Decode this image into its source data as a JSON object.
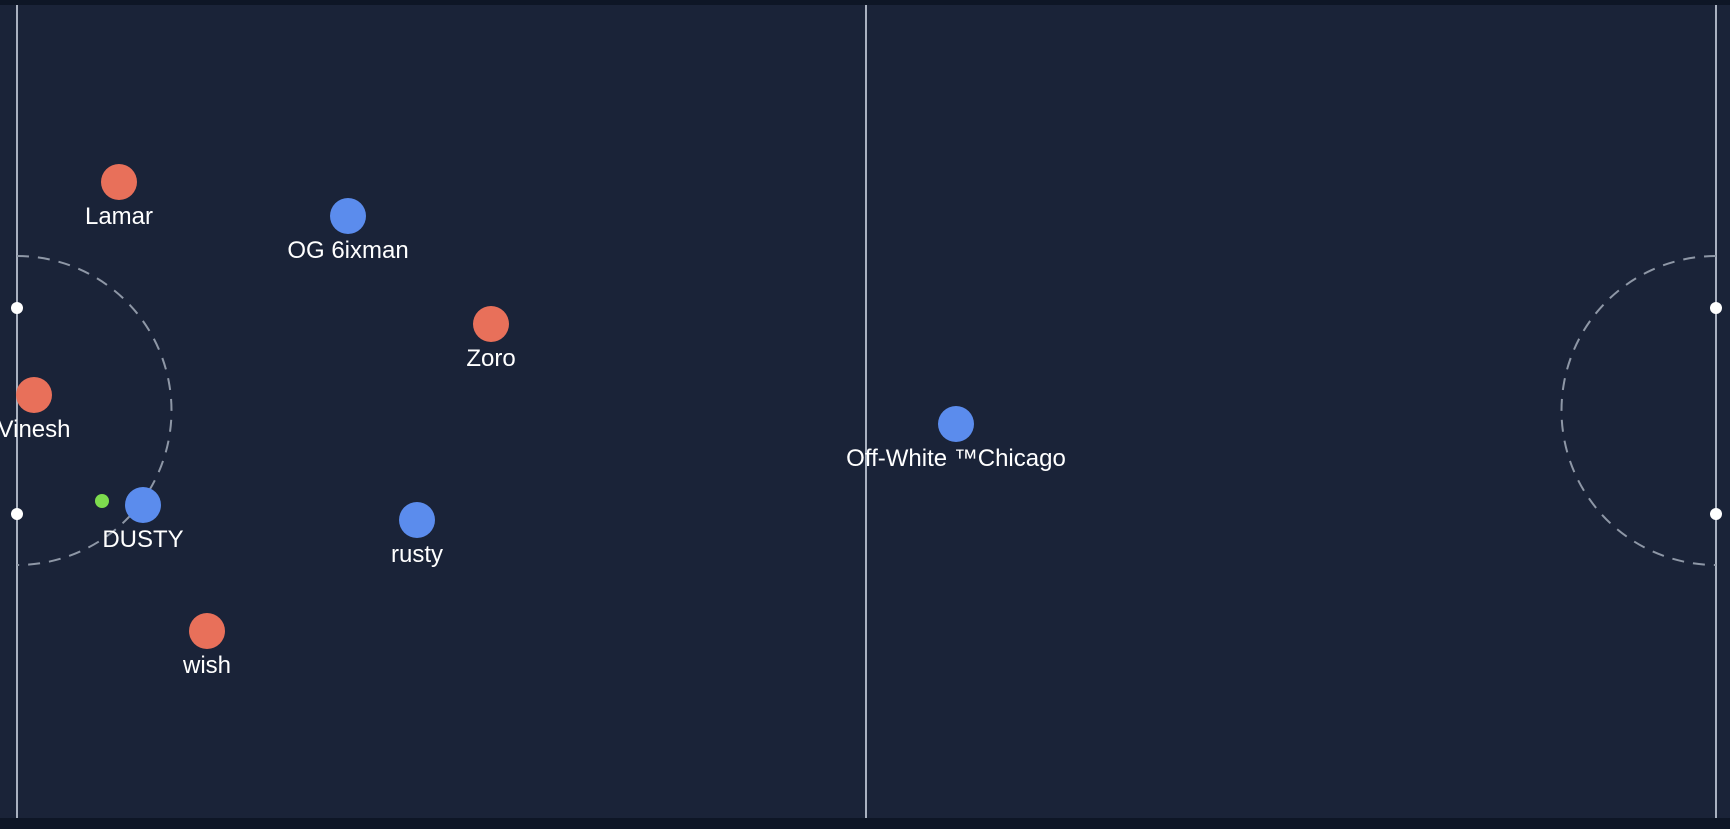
{
  "colors": {
    "field": "#1a2338",
    "frame": "#0e1626",
    "lines": "#a9b1c0",
    "goal_arc": "#8e97a6",
    "post": "#ffffff",
    "red_team": "#e8705a",
    "blue_team": "#5b8ced",
    "ball": "#7ddc4e"
  },
  "players": [
    {
      "name": "Lamar",
      "team": "red"
    },
    {
      "name": "OG 6ixman",
      "team": "blue"
    },
    {
      "name": "Zoro",
      "team": "red"
    },
    {
      "name": "Vinesh",
      "team": "red"
    },
    {
      "name": "Off-White ™Chicago",
      "team": "blue"
    },
    {
      "name": "DUSTY",
      "team": "blue"
    },
    {
      "name": "rusty",
      "team": "blue"
    },
    {
      "name": "wish",
      "team": "red"
    }
  ],
  "ball": {
    "name": "ball"
  }
}
